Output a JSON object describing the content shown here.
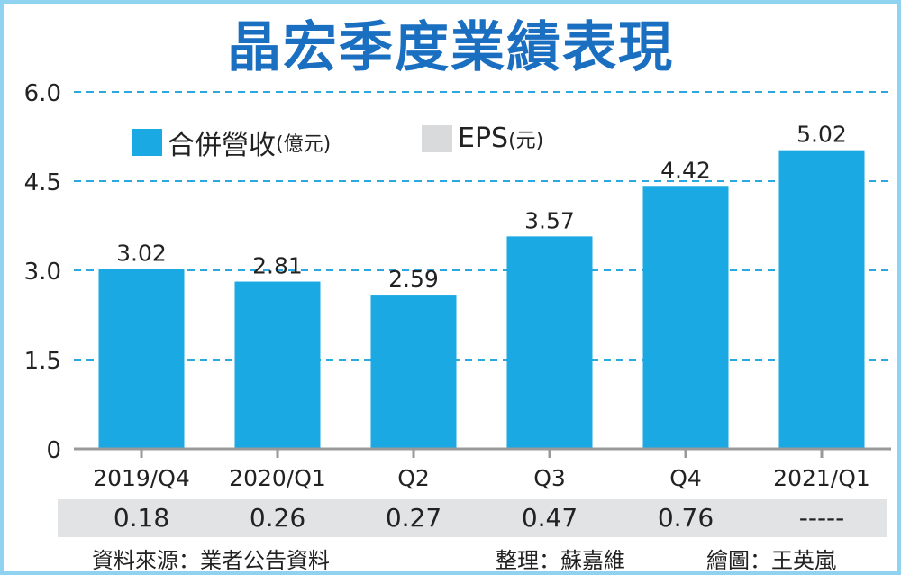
{
  "chart_data": {
    "type": "bar",
    "title": "晶宏季度業績表現",
    "categories": [
      "2019/Q4",
      "2020/Q1",
      "Q2",
      "Q3",
      "Q4",
      "2021/Q1"
    ],
    "series": [
      {
        "name": "合併營收(億元)",
        "values": [
          3.02,
          2.81,
          2.59,
          3.57,
          4.42,
          5.02
        ],
        "color": "#1aa9e2"
      },
      {
        "name": "EPS(元)",
        "values": [
          "0.18",
          "0.26",
          "0.27",
          "0.47",
          "0.76",
          "-----"
        ],
        "color": "#d9dadc"
      }
    ],
    "data_labels": [
      "3.02",
      "2.81",
      "2.59",
      "3.57",
      "4.42",
      "5.02"
    ],
    "yticks": [
      "0",
      "1.5",
      "3.0",
      "4.5",
      "6.0"
    ],
    "ylim": [
      0,
      6.0
    ],
    "grid": true,
    "legend": {
      "position": "top-left",
      "revenue_main": "合併營收",
      "revenue_unit": "(億元)",
      "eps_main": "EPS",
      "eps_unit": "(元)"
    },
    "xlabel": "",
    "ylabel": ""
  },
  "footer": {
    "source": "資料來源：業者公告資料",
    "compiled": "整理：蘇嘉維",
    "drawn": "繪圖：王英嵐"
  }
}
